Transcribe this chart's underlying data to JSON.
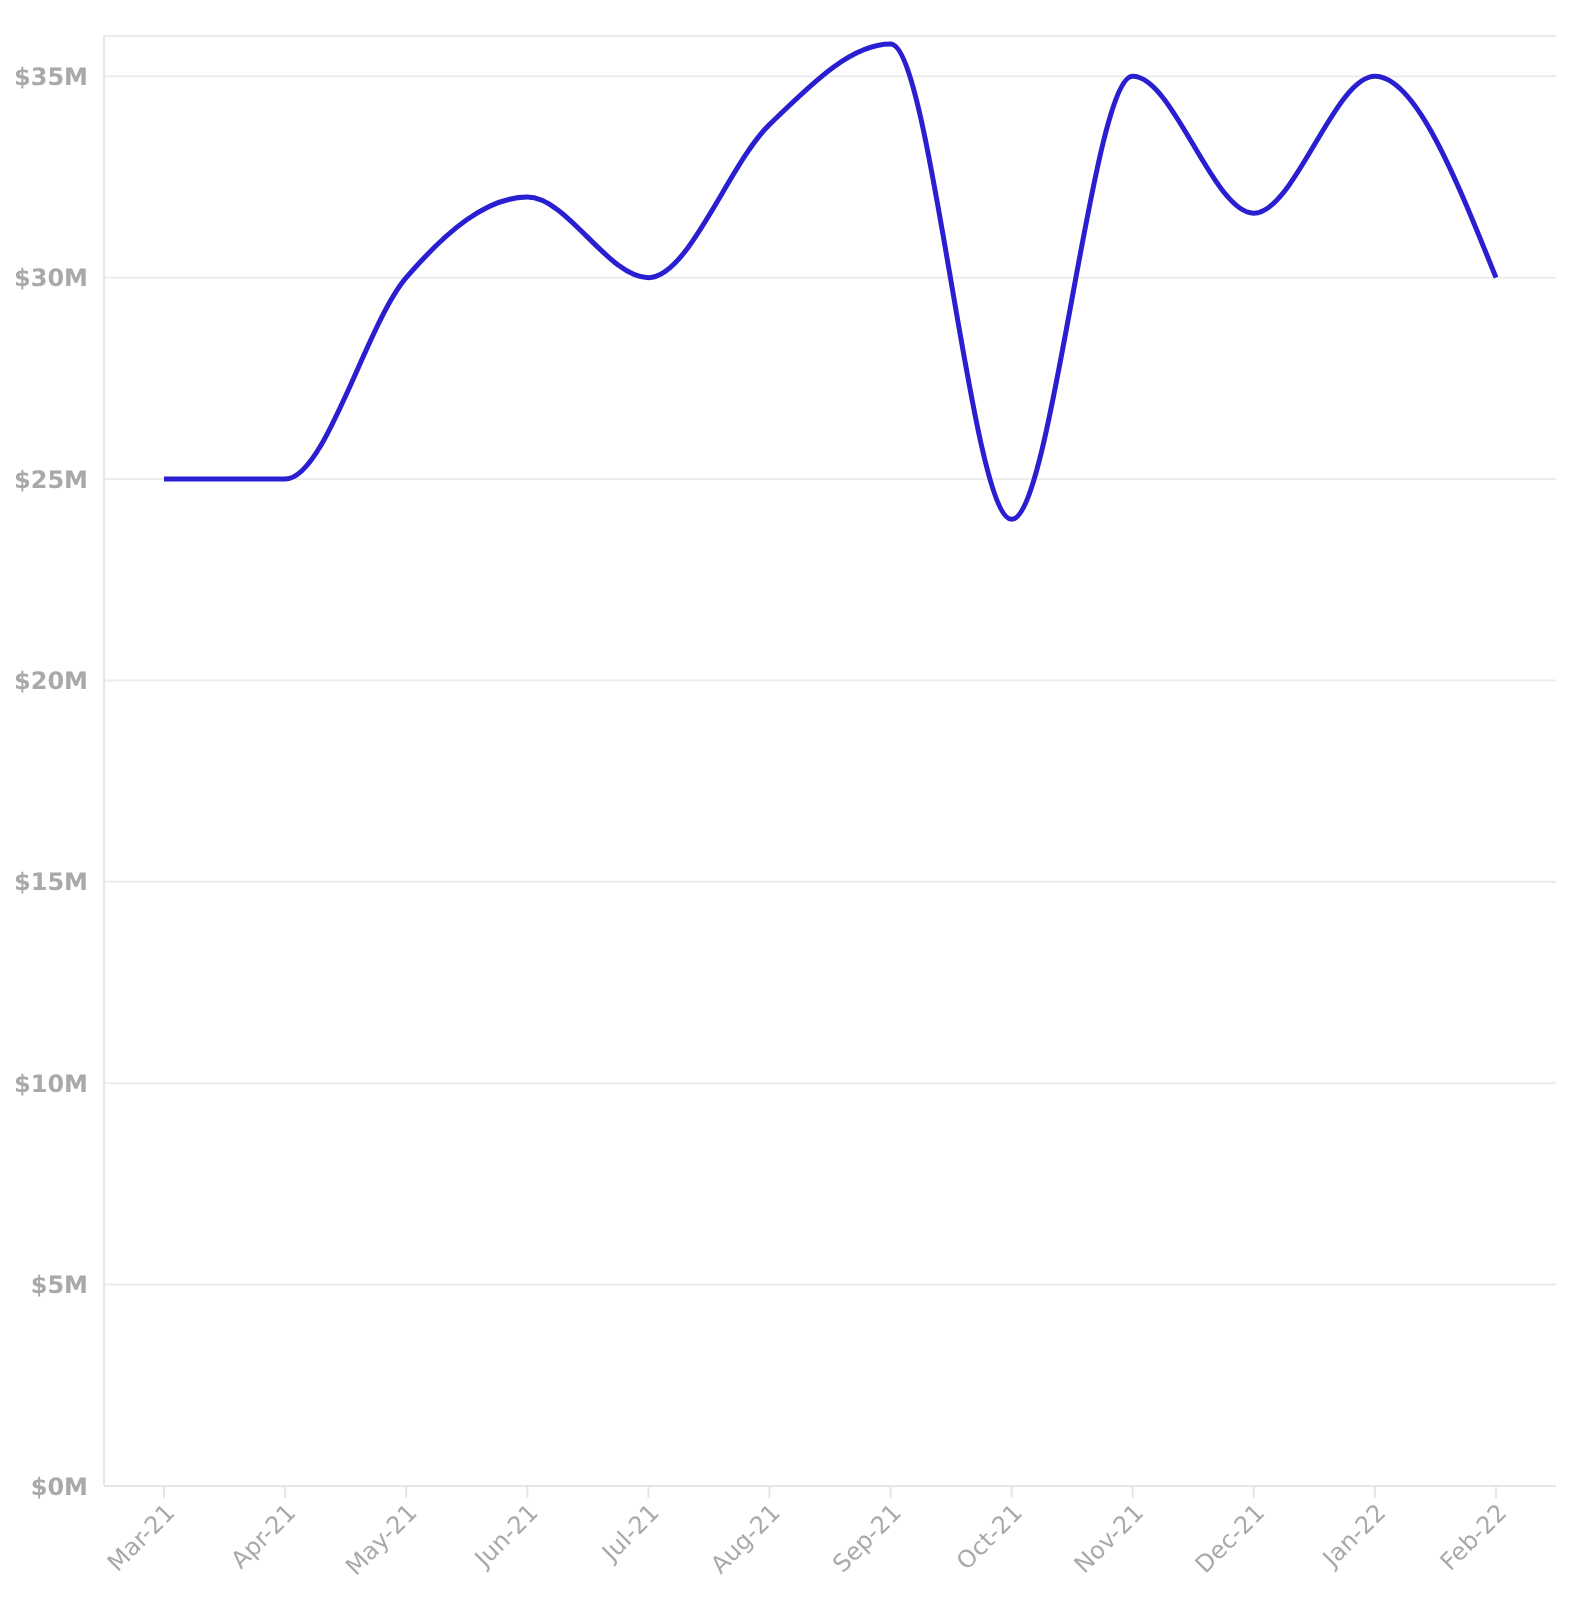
{
  "chart_data": {
    "type": "line",
    "categories": [
      "Mar-21",
      "Apr-21",
      "May-21",
      "Jun-21",
      "Jul-21",
      "Aug-21",
      "Sep-21",
      "Oct-21",
      "Nov-21",
      "Dec-21",
      "Jan-22",
      "Feb-22"
    ],
    "series": [
      {
        "color": "#2a1fd0",
        "values": [
          25,
          25,
          30,
          32,
          30,
          33.8,
          35.8,
          24,
          35,
          31.6,
          35,
          30
        ]
      }
    ],
    "ylim": [
      0,
      36
    ],
    "yticks": [
      {
        "value": 0,
        "label": "$0M"
      },
      {
        "value": 5,
        "label": "$5M"
      },
      {
        "value": 10,
        "label": "$10M"
      },
      {
        "value": 15,
        "label": "$15M"
      },
      {
        "value": 20,
        "label": "$20M"
      },
      {
        "value": 25,
        "label": "$25M"
      },
      {
        "value": 30,
        "label": "$30M"
      },
      {
        "value": 35,
        "label": "$35M"
      }
    ],
    "grid": "y",
    "marker": "none",
    "line_style": "solid"
  }
}
